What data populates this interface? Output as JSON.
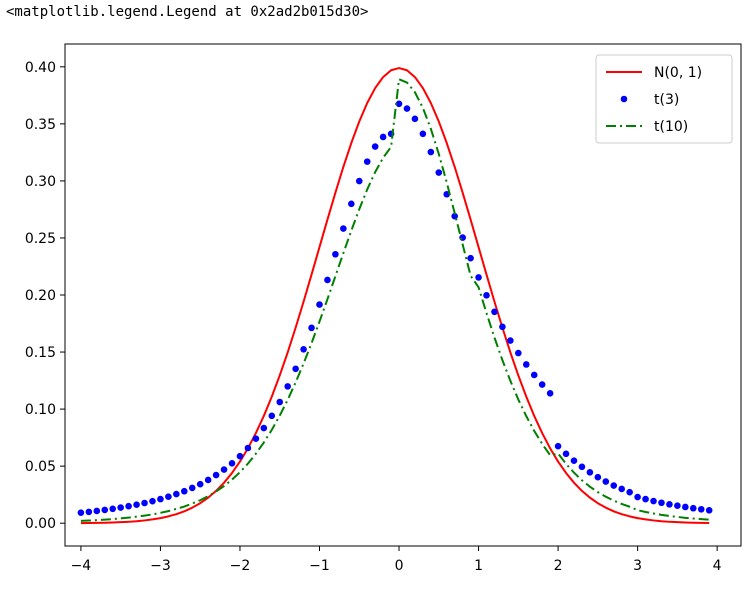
{
  "output_repr": "<matplotlib.legend.Legend at 0x2ad2b015d30>",
  "chart_data": {
    "type": "line",
    "title": "",
    "xlabel": "",
    "ylabel": "",
    "xlim": [
      -4.2,
      4.3
    ],
    "ylim": [
      -0.02,
      0.42
    ],
    "xticks": [
      -4,
      -3,
      -2,
      -1,
      0,
      1,
      2,
      3,
      4
    ],
    "xtick_labels": [
      "−4",
      "−3",
      "−2",
      "−1",
      "0",
      "1",
      "2",
      "3",
      "4"
    ],
    "yticks": [
      0.0,
      0.05,
      0.1,
      0.15,
      0.2,
      0.25,
      0.3,
      0.35,
      0.4
    ],
    "ytick_labels": [
      "0.00",
      "0.05",
      "0.10",
      "0.15",
      "0.20",
      "0.25",
      "0.30",
      "0.35",
      "0.40"
    ],
    "grid": false,
    "legend_position": "top-right",
    "x": [
      -4.0,
      -3.9,
      -3.8,
      -3.7,
      -3.6,
      -3.5,
      -3.4,
      -3.3,
      -3.2,
      -3.1,
      -3.0,
      -2.9,
      -2.8,
      -2.7,
      -2.6,
      -2.5,
      -2.4,
      -2.3,
      -2.2,
      -2.1,
      -2.0,
      -1.9,
      -1.8,
      -1.7,
      -1.6,
      -1.5,
      -1.4,
      -1.3,
      -1.2,
      -1.1,
      -1.0,
      -0.9,
      -0.8,
      -0.7,
      -0.6,
      -0.5,
      -0.4,
      -0.3,
      -0.2,
      -0.1,
      0.0,
      0.1,
      0.2,
      0.3,
      0.4,
      0.5,
      0.6,
      0.7,
      0.8,
      0.9,
      1.0,
      1.1,
      1.2,
      1.3,
      1.4,
      1.5,
      1.6,
      1.7,
      1.8,
      1.9,
      2.0,
      2.1,
      2.2,
      2.3,
      2.4,
      2.5,
      2.6,
      2.7,
      2.8,
      2.9,
      3.0,
      3.1,
      3.2,
      3.3,
      3.4,
      3.5,
      3.6,
      3.7,
      3.8,
      3.9
    ],
    "series": [
      {
        "name": "N(0, 1)",
        "color": "#ff0000",
        "style": "solid",
        "values": [
          0.0001,
          0.0002,
          0.0003,
          0.0004,
          0.0006,
          0.0009,
          0.0012,
          0.0017,
          0.0024,
          0.0033,
          0.0044,
          0.006,
          0.0079,
          0.0104,
          0.0136,
          0.0175,
          0.0224,
          0.0283,
          0.0355,
          0.044,
          0.054,
          0.0656,
          0.079,
          0.094,
          0.1109,
          0.1295,
          0.1497,
          0.1714,
          0.1942,
          0.2179,
          0.242,
          0.2661,
          0.2897,
          0.3123,
          0.3332,
          0.3521,
          0.3683,
          0.3814,
          0.391,
          0.397,
          0.3989,
          0.397,
          0.391,
          0.3814,
          0.3683,
          0.3521,
          0.3332,
          0.3123,
          0.2897,
          0.2661,
          0.242,
          0.2179,
          0.1942,
          0.1714,
          0.1497,
          0.1295,
          0.1109,
          0.094,
          0.079,
          0.0656,
          0.054,
          0.044,
          0.0355,
          0.0283,
          0.0224,
          0.0175,
          0.0136,
          0.0104,
          0.0079,
          0.006,
          0.0044,
          0.0033,
          0.0024,
          0.0017,
          0.0012,
          0.0009,
          0.0006,
          0.0004,
          0.0003,
          0.0002
        ]
      },
      {
        "name": "t(3)",
        "color": "#0000ff",
        "style": "dots",
        "values": [
          0.0092,
          0.0099,
          0.0107,
          0.0116,
          0.0126,
          0.0137,
          0.0149,
          0.0162,
          0.0177,
          0.0193,
          0.0211,
          0.0232,
          0.0255,
          0.028,
          0.0309,
          0.0342,
          0.0379,
          0.0422,
          0.047,
          0.0525,
          0.0587,
          0.0659,
          0.0741,
          0.0834,
          0.0941,
          0.1062,
          0.1199,
          0.1353,
          0.1524,
          0.1712,
          0.1916,
          0.2132,
          0.2357,
          0.2582,
          0.2799,
          0.2999,
          0.3169,
          0.3301,
          0.3385,
          0.3413,
          0.3676,
          0.3634,
          0.3544,
          0.3413,
          0.3253,
          0.3073,
          0.2883,
          0.2691,
          0.2503,
          0.2323,
          0.2154,
          0.1997,
          0.1853,
          0.1721,
          0.1601,
          0.1491,
          0.1391,
          0.1299,
          0.1215,
          0.1138,
          0.0675,
          0.0608,
          0.0548,
          0.0494,
          0.0446,
          0.0403,
          0.0365,
          0.033,
          0.03,
          0.0272,
          0.0229,
          0.0211,
          0.0194,
          0.0179,
          0.0165,
          0.0153,
          0.0142,
          0.0131,
          0.0122,
          0.0113
        ]
      },
      {
        "name": "t(10)",
        "color": "#008000",
        "style": "dashdot",
        "values": [
          0.002,
          0.0023,
          0.0027,
          0.0031,
          0.0036,
          0.0042,
          0.0049,
          0.0057,
          0.0066,
          0.0077,
          0.0091,
          0.0106,
          0.0125,
          0.0146,
          0.0172,
          0.0201,
          0.0237,
          0.0278,
          0.0326,
          0.0382,
          0.0447,
          0.0522,
          0.0609,
          0.0707,
          0.0818,
          0.0943,
          0.1081,
          0.1234,
          0.14,
          0.1578,
          0.1767,
          0.1963,
          0.2165,
          0.2367,
          0.2564,
          0.2752,
          0.2925,
          0.3077,
          0.3203,
          0.3298,
          0.3891,
          0.3862,
          0.3777,
          0.364,
          0.3457,
          0.3236,
          0.2986,
          0.2718,
          0.2443,
          0.2169,
          0.2068,
          0.1841,
          0.1627,
          0.1429,
          0.1248,
          0.1084,
          0.0938,
          0.0809,
          0.0695,
          0.0596,
          0.0611,
          0.052,
          0.0443,
          0.0376,
          0.032,
          0.0272,
          0.0232,
          0.0198,
          0.0169,
          0.0144,
          0.0114,
          0.0098,
          0.0085,
          0.0073,
          0.0063,
          0.0055,
          0.0047,
          0.0041,
          0.0036,
          0.0031
        ]
      }
    ]
  }
}
